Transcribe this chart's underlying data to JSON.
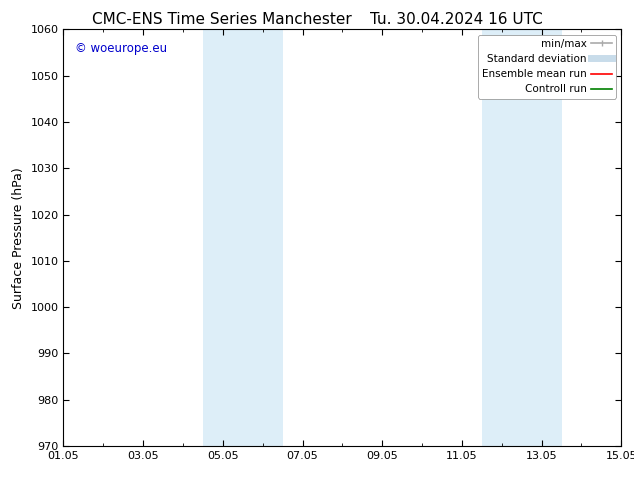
{
  "title_left": "CMC-ENS Time Series Manchester",
  "title_right": "Tu. 30.04.2024 16 UTC",
  "ylabel": "Surface Pressure (hPa)",
  "ylim": [
    970,
    1060
  ],
  "yticks": [
    970,
    980,
    990,
    1000,
    1010,
    1020,
    1030,
    1040,
    1050,
    1060
  ],
  "xlim": [
    0,
    14
  ],
  "xtick_labels": [
    "01.05",
    "03.05",
    "05.05",
    "07.05",
    "09.05",
    "11.05",
    "13.05",
    "15.05"
  ],
  "xtick_positions": [
    0,
    2,
    4,
    6,
    8,
    10,
    12,
    14
  ],
  "shaded_bands": [
    {
      "x_start": 3.5,
      "x_end": 5.5
    },
    {
      "x_start": 10.5,
      "x_end": 12.5
    }
  ],
  "shade_color": "#ddeef8",
  "watermark_text": "© woeurope.eu",
  "watermark_color": "#0000cc",
  "legend_entries": [
    {
      "label": "min/max",
      "color": "#aaaaaa",
      "lw": 1.2
    },
    {
      "label": "Standard deviation",
      "color": "#c8dcea",
      "lw": 5
    },
    {
      "label": "Ensemble mean run",
      "color": "#ff0000",
      "lw": 1.2
    },
    {
      "label": "Controll run",
      "color": "#008000",
      "lw": 1.2
    }
  ],
  "bg_color": "#ffffff",
  "title_fontsize": 11,
  "axis_fontsize": 9,
  "tick_fontsize": 8
}
